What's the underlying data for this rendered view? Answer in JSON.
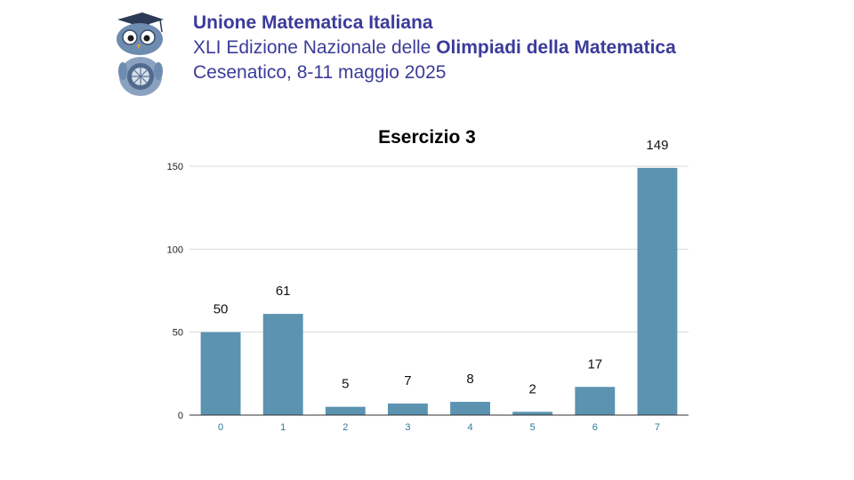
{
  "header": {
    "organization": "Unione Matematica Italiana",
    "edition_prefix": "XLI Edizione Nazionale delle ",
    "edition_bold": "Olimpiadi della Matematica",
    "location_date": "Cesenatico, 8-11 maggio 2025"
  },
  "logo": {
    "icon": "owl-mascot-icon"
  },
  "colors": {
    "header_text": "#3b3b9a",
    "bar": "#5b93b1",
    "grid": "#d9d9d9",
    "xtick": "#2f7a98"
  },
  "chart_data": {
    "type": "bar",
    "title": "Esercizio 3",
    "xlabel": "",
    "ylabel": "",
    "categories": [
      "0",
      "1",
      "2",
      "3",
      "4",
      "5",
      "6",
      "7"
    ],
    "values": [
      50,
      61,
      5,
      7,
      8,
      2,
      17,
      149
    ],
    "ylim": [
      0,
      150
    ],
    "yticks": [
      0,
      50,
      100,
      150
    ],
    "grid": true,
    "data_labels": true
  }
}
